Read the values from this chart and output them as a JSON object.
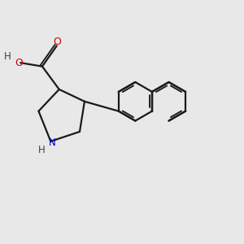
{
  "background_color": "#e8e8e8",
  "bond_color": "#1a1a1a",
  "bond_width": 1.6,
  "n_color": "#0000cc",
  "o_color": "#cc0000",
  "h_color": "#404040",
  "figsize": [
    3.0,
    3.0
  ],
  "dpi": 100,
  "xlim": [
    0,
    10
  ],
  "ylim": [
    0,
    10
  ]
}
